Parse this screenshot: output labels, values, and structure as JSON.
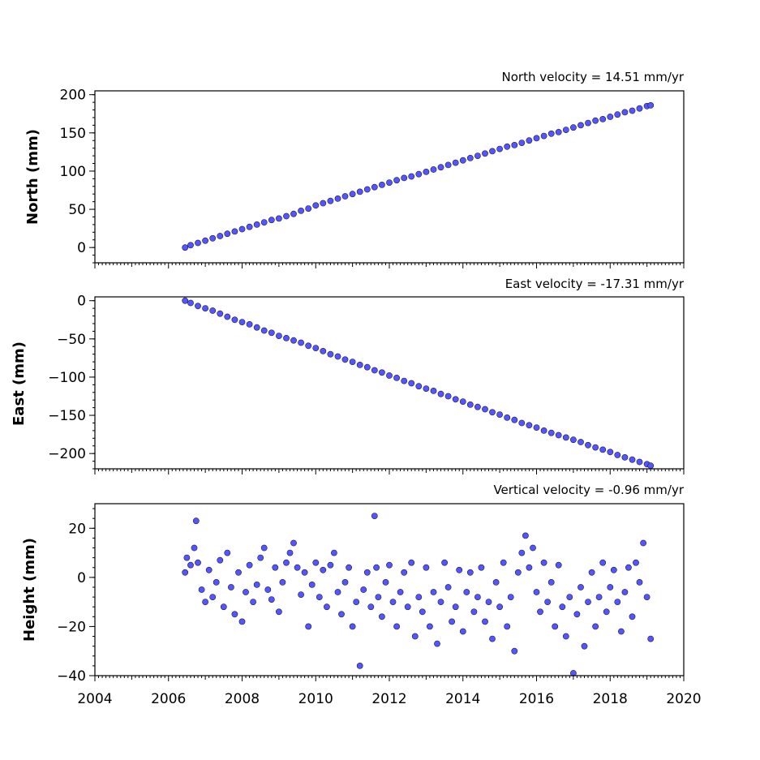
{
  "chart_data": [
    {
      "type": "scatter",
      "panel": "north",
      "title": "North velocity = 14.51 mm/yr",
      "xlabel": "",
      "ylabel": "North (mm)",
      "xlim": [
        2004,
        2020
      ],
      "ylim": [
        -20,
        205
      ],
      "yticks": [
        0,
        50,
        100,
        150,
        200
      ],
      "xticks": [],
      "series": [
        {
          "color": "#5555ff",
          "x": [
            2006.45,
            2006.6,
            2006.8,
            2007.0,
            2007.2,
            2007.4,
            2007.6,
            2007.8,
            2008.0,
            2008.2,
            2008.4,
            2008.6,
            2008.8,
            2009.0,
            2009.2,
            2009.4,
            2009.6,
            2009.8,
            2010.0,
            2010.2,
            2010.4,
            2010.6,
            2010.8,
            2011.0,
            2011.2,
            2011.4,
            2011.6,
            2011.8,
            2012.0,
            2012.2,
            2012.4,
            2012.6,
            2012.8,
            2013.0,
            2013.2,
            2013.4,
            2013.6,
            2013.8,
            2014.0,
            2014.2,
            2014.4,
            2014.6,
            2014.8,
            2015.0,
            2015.2,
            2015.4,
            2015.6,
            2015.8,
            2016.0,
            2016.2,
            2016.4,
            2016.6,
            2016.8,
            2017.0,
            2017.2,
            2017.4,
            2017.6,
            2017.8,
            2018.0,
            2018.2,
            2018.4,
            2018.6,
            2018.8,
            2019.0,
            2019.1
          ],
          "y": [
            0,
            3,
            6,
            9,
            12,
            15,
            18,
            21,
            24,
            27,
            30,
            33,
            36,
            38,
            41,
            44,
            48,
            51,
            55,
            58,
            61,
            64,
            67,
            70,
            73,
            76,
            79,
            82,
            85,
            88,
            91,
            93,
            96,
            99,
            102,
            105,
            108,
            111,
            114,
            117,
            120,
            123,
            126,
            129,
            132,
            134,
            137,
            140,
            143,
            146,
            149,
            151,
            154,
            157,
            160,
            163,
            166,
            168,
            171,
            174,
            177,
            179,
            182,
            185,
            186
          ]
        }
      ]
    },
    {
      "type": "scatter",
      "panel": "east",
      "title": "East velocity = -17.31 mm/yr",
      "xlabel": "",
      "ylabel": "East (mm)",
      "xlim": [
        2004,
        2020
      ],
      "ylim": [
        -220,
        5
      ],
      "yticks": [
        0,
        -50,
        -100,
        -150,
        -200
      ],
      "xticks": [],
      "series": [
        {
          "color": "#5555ff",
          "x": [
            2006.45,
            2006.6,
            2006.8,
            2007.0,
            2007.2,
            2007.4,
            2007.6,
            2007.8,
            2008.0,
            2008.2,
            2008.4,
            2008.6,
            2008.8,
            2009.0,
            2009.2,
            2009.4,
            2009.6,
            2009.8,
            2010.0,
            2010.2,
            2010.4,
            2010.6,
            2010.8,
            2011.0,
            2011.2,
            2011.4,
            2011.6,
            2011.8,
            2012.0,
            2012.2,
            2012.4,
            2012.6,
            2012.8,
            2013.0,
            2013.2,
            2013.4,
            2013.6,
            2013.8,
            2014.0,
            2014.2,
            2014.4,
            2014.6,
            2014.8,
            2015.0,
            2015.2,
            2015.4,
            2015.6,
            2015.8,
            2016.0,
            2016.2,
            2016.4,
            2016.6,
            2016.8,
            2017.0,
            2017.2,
            2017.4,
            2017.6,
            2017.8,
            2018.0,
            2018.2,
            2018.4,
            2018.6,
            2018.8,
            2019.0,
            2019.1
          ],
          "y": [
            0,
            -3,
            -7,
            -10,
            -13,
            -17,
            -21,
            -25,
            -28,
            -31,
            -35,
            -39,
            -42,
            -46,
            -49,
            -52,
            -55,
            -59,
            -62,
            -66,
            -70,
            -73,
            -77,
            -80,
            -84,
            -87,
            -91,
            -94,
            -98,
            -101,
            -105,
            -108,
            -112,
            -115,
            -118,
            -122,
            -125,
            -129,
            -132,
            -136,
            -139,
            -142,
            -146,
            -149,
            -153,
            -156,
            -160,
            -163,
            -166,
            -170,
            -173,
            -176,
            -179,
            -182,
            -185,
            -189,
            -192,
            -195,
            -198,
            -202,
            -205,
            -208,
            -211,
            -214,
            -216
          ]
        }
      ]
    },
    {
      "type": "scatter",
      "panel": "height",
      "title": "Vertical velocity = -0.96 mm/yr",
      "xlabel": "",
      "ylabel": "Height (mm)",
      "xlim": [
        2004,
        2020
      ],
      "ylim": [
        -40,
        30
      ],
      "yticks": [
        20,
        0,
        -20,
        -40
      ],
      "xticks": [
        2004,
        2006,
        2008,
        2010,
        2012,
        2014,
        2016,
        2018,
        2020
      ],
      "series": [
        {
          "color": "#5555ff",
          "x": [
            2006.45,
            2006.5,
            2006.6,
            2006.7,
            2006.75,
            2006.8,
            2006.9,
            2007.0,
            2007.1,
            2007.2,
            2007.3,
            2007.4,
            2007.5,
            2007.6,
            2007.7,
            2007.8,
            2007.9,
            2008.0,
            2008.1,
            2008.2,
            2008.3,
            2008.4,
            2008.5,
            2008.6,
            2008.7,
            2008.8,
            2008.9,
            2009.0,
            2009.1,
            2009.2,
            2009.3,
            2009.4,
            2009.5,
            2009.6,
            2009.7,
            2009.8,
            2009.9,
            2010.0,
            2010.1,
            2010.2,
            2010.3,
            2010.4,
            2010.5,
            2010.6,
            2010.7,
            2010.8,
            2010.9,
            2011.0,
            2011.1,
            2011.2,
            2011.3,
            2011.4,
            2011.5,
            2011.6,
            2011.65,
            2011.7,
            2011.8,
            2011.9,
            2012.0,
            2012.1,
            2012.2,
            2012.3,
            2012.4,
            2012.5,
            2012.6,
            2012.7,
            2012.8,
            2012.9,
            2013.0,
            2013.1,
            2013.2,
            2013.3,
            2013.4,
            2013.5,
            2013.6,
            2013.7,
            2013.8,
            2013.9,
            2014.0,
            2014.1,
            2014.2,
            2014.3,
            2014.4,
            2014.5,
            2014.6,
            2014.7,
            2014.8,
            2014.9,
            2015.0,
            2015.1,
            2015.2,
            2015.3,
            2015.4,
            2015.5,
            2015.6,
            2015.7,
            2015.8,
            2015.9,
            2016.0,
            2016.1,
            2016.2,
            2016.3,
            2016.4,
            2016.5,
            2016.6,
            2016.7,
            2016.8,
            2016.9,
            2017.0,
            2017.1,
            2017.2,
            2017.3,
            2017.4,
            2017.5,
            2017.6,
            2017.7,
            2017.8,
            2017.9,
            2018.0,
            2018.1,
            2018.2,
            2018.3,
            2018.4,
            2018.5,
            2018.6,
            2018.7,
            2018.8,
            2018.9,
            2019.0,
            2019.1
          ],
          "y": [
            2,
            8,
            5,
            12,
            23,
            6,
            -5,
            -10,
            3,
            -8,
            -2,
            7,
            -12,
            10,
            -4,
            -15,
            2,
            -18,
            -6,
            5,
            -10,
            -3,
            8,
            12,
            -5,
            -9,
            4,
            -14,
            -2,
            6,
            10,
            14,
            4,
            -7,
            2,
            -20,
            -3,
            6,
            -8,
            3,
            -12,
            5,
            10,
            -6,
            -15,
            -2,
            4,
            -20,
            -10,
            -36,
            -5,
            2,
            -12,
            25,
            4,
            -8,
            -16,
            -2,
            5,
            -10,
            -20,
            -6,
            2,
            -12,
            6,
            -24,
            -8,
            -14,
            4,
            -20,
            -6,
            -27,
            -10,
            6,
            -4,
            -18,
            -12,
            3,
            -22,
            -6,
            2,
            -14,
            -8,
            4,
            -18,
            -10,
            -25,
            -2,
            -12,
            6,
            -20,
            -8,
            -30,
            2,
            10,
            17,
            4,
            12,
            -6,
            -14,
            6,
            -10,
            -2,
            -20,
            5,
            -12,
            -24,
            -8,
            -39,
            -15,
            -4,
            -28,
            -10,
            2,
            -20,
            -8,
            6,
            -14,
            -4,
            3,
            -10,
            -22,
            -6,
            4,
            -16,
            6,
            -2,
            14,
            -8,
            -25
          ]
        }
      ]
    }
  ]
}
